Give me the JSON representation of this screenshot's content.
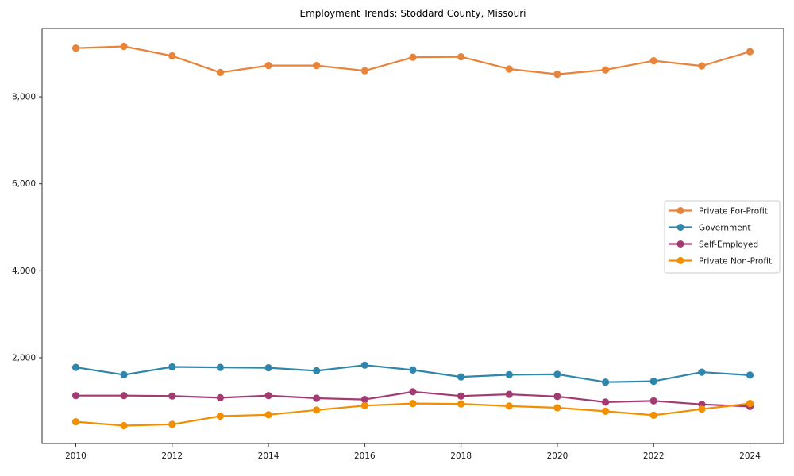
{
  "chart_data": {
    "type": "line",
    "title": "Employment Trends: Stoddard County, Missouri",
    "xlabel": "",
    "ylabel": "",
    "x": [
      2010,
      2011,
      2012,
      2013,
      2014,
      2015,
      2016,
      2017,
      2018,
      2019,
      2020,
      2021,
      2022,
      2023,
      2024
    ],
    "series": [
      {
        "name": "Private For-Profit",
        "color": "#e8833a",
        "values": [
          9120,
          9160,
          8940,
          8560,
          8720,
          8720,
          8600,
          8910,
          8920,
          8640,
          8520,
          8620,
          8830,
          8710,
          9040
        ]
      },
      {
        "name": "Government",
        "color": "#2e86ab",
        "values": [
          1780,
          1610,
          1790,
          1780,
          1770,
          1700,
          1830,
          1720,
          1560,
          1610,
          1620,
          1440,
          1460,
          1670,
          1600
        ]
      },
      {
        "name": "Self-Employed",
        "color": "#a23b72",
        "values": [
          1130,
          1130,
          1120,
          1080,
          1130,
          1070,
          1040,
          1220,
          1120,
          1160,
          1110,
          980,
          1010,
          930,
          880
        ]
      },
      {
        "name": "Private Non-Profit",
        "color": "#f18f01",
        "values": [
          530,
          440,
          470,
          660,
          690,
          800,
          900,
          950,
          940,
          890,
          850,
          770,
          680,
          820,
          950
        ]
      }
    ],
    "xticks": [
      2010,
      2012,
      2014,
      2016,
      2018,
      2020,
      2022,
      2024
    ],
    "xtick_labels": [
      "2010",
      "2012",
      "2014",
      "2016",
      "2018",
      "2020",
      "2022",
      "2024"
    ],
    "yticks": [
      2000,
      4000,
      6000,
      8000
    ],
    "ytick_labels": [
      "2,000",
      "4,000",
      "6,000",
      "8,000"
    ],
    "xlim": [
      2009.3,
      2024.7
    ],
    "ylim": [
      30,
      9570
    ],
    "grid": false,
    "legend_position": "center right",
    "marker": "circle",
    "axis_color": "#2b2b2b",
    "tick_label_color": "#1a1a1a",
    "legend_border_color": "#cccccc",
    "legend_background": "#ffffff"
  }
}
